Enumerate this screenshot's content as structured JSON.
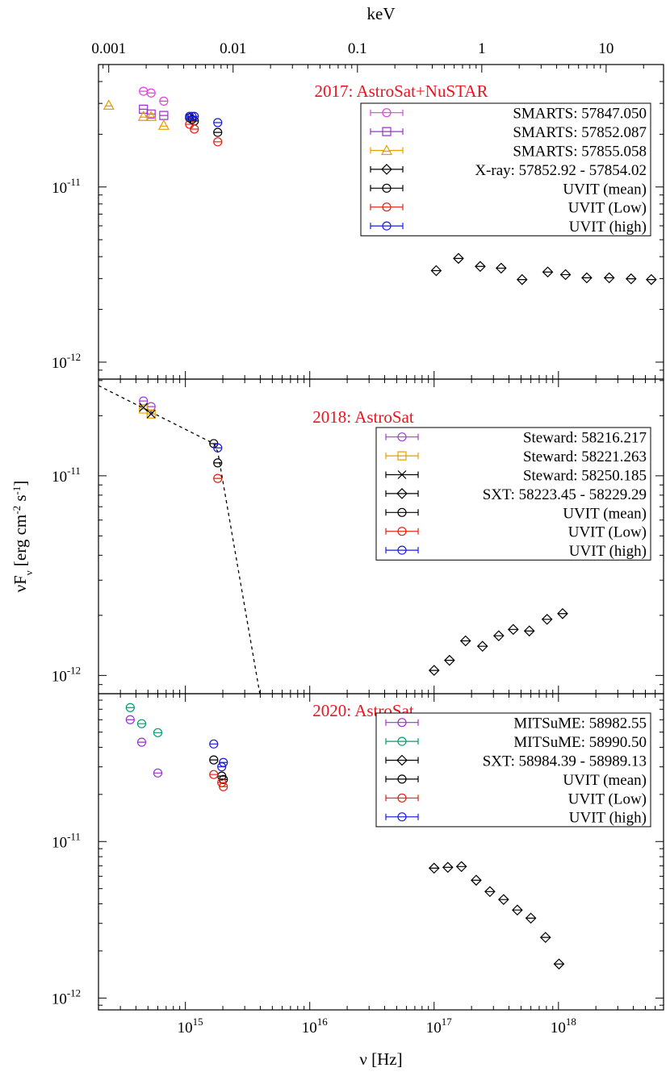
{
  "chart_data": [
    {
      "type": "scatter",
      "title": "2017: AstroSat+NuSTAR",
      "xscale": "log",
      "yscale": "log",
      "xlim": [
        200000000000000.0,
        7e+18
      ],
      "ylim": [
        8e-13,
        5e-11
      ],
      "yticks": [
        {
          "value": 1e-12,
          "label": "10",
          "sup": "-12"
        },
        {
          "value": 1e-11,
          "label": "10",
          "sup": "-11"
        }
      ],
      "x2label": "keV",
      "x2lim": [
        0.000827,
        28.95
      ],
      "x2ticks": [
        0.001,
        0.01,
        0.1,
        1,
        10
      ],
      "series": [
        {
          "name": "SMARTS: 57847.050",
          "color": "#e040e0",
          "marker": "circle",
          "x": [
            460000000000000.0,
            530000000000000.0,
            670000000000000.0
          ],
          "values": [
            3.52e-11,
            3.44e-11,
            3.09e-11
          ]
        },
        {
          "name": "SMARTS: 57852.087",
          "color": "#9932cc",
          "marker": "square",
          "x": [
            460000000000000.0,
            530000000000000.0,
            670000000000000.0
          ],
          "values": [
            2.78e-11,
            2.61e-11,
            2.56e-11
          ]
        },
        {
          "name": "SMARTS: 57855.058",
          "color": "#e69f00",
          "marker": "triangle",
          "x": [
            242000000000000.0,
            460000000000000.0,
            530000000000000.0,
            670000000000000.0
          ],
          "values": [
            2.93e-11,
            2.53e-11,
            2.53e-11,
            2.25e-11
          ]
        },
        {
          "name": "X-ray: 57852.92 - 57854.02",
          "color": "#000000",
          "marker": "diamond",
          "x": [
            1.04e+17,
            1.57e+17,
            2.35e+17,
            3.46e+17,
            5.1e+17,
            8.2e+17,
            1.14e+18,
            1.69e+18,
            2.56e+18,
            3.84e+18,
            5.58e+18
          ],
          "values": [
            3.33e-12,
            3.91e-12,
            3.52e-12,
            3.44e-12,
            2.96e-12,
            3.27e-12,
            3.16e-12,
            3.03e-12,
            3.03e-12,
            2.99e-12,
            2.96e-12
          ]
        },
        {
          "name": "UVIT (mean)",
          "color": "#000000",
          "marker": "circle",
          "x": [
            1080000000000000.0,
            1130000000000000.0,
            1180000000000000.0,
            1820000000000000.0
          ],
          "values": [
            2.48e-11,
            2.43e-11,
            2.38e-11,
            2.05e-11
          ]
        },
        {
          "name": "UVIT (Low)",
          "color": "#e51e10",
          "marker": "circle",
          "x": [
            1080000000000000.0,
            1180000000000000.0,
            1820000000000000.0
          ],
          "values": [
            2.28e-11,
            2.14e-11,
            1.81e-11
          ]
        },
        {
          "name": "UVIT (high)",
          "color": "#1a1ae6",
          "marker": "circle",
          "x": [
            1080000000000000.0,
            1130000000000000.0,
            1180000000000000.0,
            1820000000000000.0
          ],
          "values": [
            2.53e-11,
            2.53e-11,
            2.53e-11,
            2.33e-11
          ]
        }
      ]
    },
    {
      "type": "scatter",
      "title": "2018: AstroSat",
      "xscale": "log",
      "yscale": "log",
      "xlim": [
        200000000000000.0,
        7e+18
      ],
      "ylim": [
        8.1e-13,
        3.05e-11
      ],
      "yticks": [
        {
          "value": 1e-12,
          "label": "10",
          "sup": "-12"
        },
        {
          "value": 1e-11,
          "label": "10",
          "sup": "-11"
        }
      ],
      "ylabel": [
        "νF",
        "ν",
        " [erg cm",
        "-2",
        " s",
        "-1",
        "]"
      ],
      "series": [
        {
          "name": "Steward: 58216.217",
          "color": "#a040d0",
          "marker": "circle",
          "x": [
            460000000000000.0,
            530000000000000.0
          ],
          "values": [
            2.37e-11,
            2.22e-11
          ]
        },
        {
          "name": "Steward: 58221.263",
          "color": "#e69f00",
          "marker": "square",
          "x": [
            460000000000000.0,
            530000000000000.0
          ],
          "values": [
            2.16e-11,
            2.04e-11
          ]
        },
        {
          "name": "Steward: 58250.185",
          "color": "#000000",
          "marker": "cross",
          "x": [
            460000000000000.0,
            530000000000000.0
          ],
          "values": [
            2.2e-11,
            2.04e-11
          ]
        },
        {
          "name": "SXT: 58223.45 - 58229.29",
          "color": "#000000",
          "marker": "diamond",
          "x": [
            1e+17,
            1.33e+17,
            1.79e+17,
            2.45e+17,
            3.31e+17,
            4.33e+17,
            5.83e+17,
            8.1e+17,
            1.08e+18
          ],
          "values": [
            1.06e-12,
            1.19e-12,
            1.49e-12,
            1.4e-12,
            1.58e-12,
            1.7e-12,
            1.67e-12,
            1.91e-12,
            2.04e-12
          ]
        },
        {
          "name": "UVIT (mean)",
          "color": "#000000",
          "marker": "circle",
          "x": [
            1690000000000000.0,
            1820000000000000.0
          ],
          "values": [
            1.45e-11,
            1.16e-11
          ]
        },
        {
          "name": "UVIT (Low)",
          "color": "#e51e10",
          "marker": "circle",
          "x": [
            1820000000000000.0
          ],
          "values": [
            9.7e-12
          ]
        },
        {
          "name": "UVIT (high)",
          "color": "#1a1ae6",
          "marker": "circle",
          "x": [
            1820000000000000.0
          ],
          "values": [
            1.38e-11
          ]
        },
        {
          "color": "#000000",
          "line": "dashed",
          "x": [
            200000000000000.0,
            1690000000000000.0,
            1820000000000000.0,
            3960000000000000.0
          ],
          "values": [
            2.83e-11,
            1.45e-11,
            1.32e-11,
            8.15e-13
          ]
        }
      ]
    },
    {
      "type": "scatter",
      "title": "2020: AstroSat",
      "xscale": "log",
      "yscale": "log",
      "xlim": [
        200000000000000.0,
        7e+18
      ],
      "ylim": [
        8.4e-13,
        8.8e-11
      ],
      "yticks": [
        {
          "value": 1e-12,
          "label": "10",
          "sup": "-12"
        },
        {
          "value": 1e-11,
          "label": "10",
          "sup": "-11"
        }
      ],
      "xlabel": "ν [Hz]",
      "xticks": [
        {
          "value": 1000000000000000.0,
          "label": "10",
          "sup": "15"
        },
        {
          "value": 1e+16,
          "label": "10",
          "sup": "16"
        },
        {
          "value": 1e+17,
          "label": "10",
          "sup": "17"
        },
        {
          "value": 1e+18,
          "label": "10",
          "sup": "18"
        }
      ],
      "series": [
        {
          "name": "MITSuME: 58982.55",
          "color": "#9932cc",
          "marker": "circle",
          "x": [
            360000000000000.0,
            445000000000000.0,
            600000000000000.0
          ],
          "values": [
            6e-11,
            4.31e-11,
            2.74e-11
          ]
        },
        {
          "name": "MITSuME: 58990.50",
          "color": "#009e73",
          "marker": "circle",
          "x": [
            360000000000000.0,
            445000000000000.0,
            600000000000000.0
          ],
          "values": [
            7.17e-11,
            5.66e-11,
            4.96e-11
          ]
        },
        {
          "name": "SXT: 58984.39 - 58989.13",
          "color": "#000000",
          "marker": "diamond",
          "x": [
            1e+17,
            1.29e+17,
            1.66e+17,
            2.18e+17,
            2.81e+17,
            3.62e+17,
            4.67e+17,
            6e+17,
            7.87e+17,
            1.01e+18
          ],
          "values": [
            6.76e-12,
            6.84e-12,
            6.92e-12,
            5.66e-12,
            4.79e-12,
            4.26e-12,
            3.65e-12,
            3.24e-12,
            2.44e-12,
            1.65e-12
          ]
        },
        {
          "name": "UVIT (mean)",
          "color": "#000000",
          "marker": "circle",
          "x": [
            1690000000000000.0,
            1960000000000000.0,
            2020000000000000.0
          ],
          "values": [
            3.32e-11,
            2.62e-11,
            2.49e-11
          ]
        },
        {
          "name": "UVIT (Low)",
          "color": "#e51e10",
          "marker": "circle",
          "x": [
            1690000000000000.0,
            1960000000000000.0,
            2020000000000000.0
          ],
          "values": [
            2.68e-11,
            2.38e-11,
            2.24e-11
          ]
        },
        {
          "name": "UVIT (high)",
          "color": "#1a1ae6",
          "marker": "circle",
          "x": [
            1690000000000000.0,
            1960000000000000.0,
            2020000000000000.0
          ],
          "values": [
            4.2e-11,
            3e-11,
            3.2e-11
          ]
        }
      ]
    }
  ]
}
